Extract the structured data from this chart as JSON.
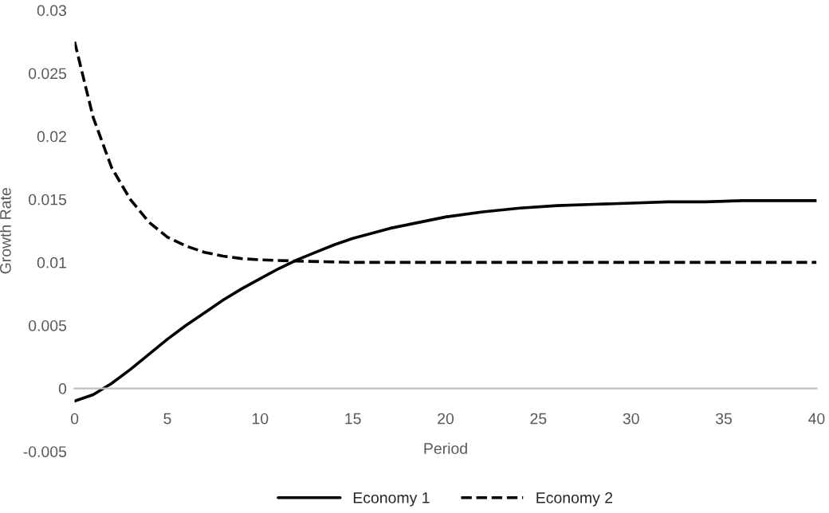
{
  "chart_data": {
    "type": "line",
    "xlabel": "Period",
    "ylabel": "Growth Rate",
    "xlim": [
      0,
      40
    ],
    "xticks": [
      0,
      5,
      10,
      15,
      20,
      25,
      30,
      35,
      40
    ],
    "ylim": [
      -0.005,
      0.03
    ],
    "yticks": [
      -0.005,
      0,
      0.005,
      0.01,
      0.015,
      0.02,
      0.025,
      0.03
    ],
    "grid": false,
    "legend": "bottom",
    "series": [
      {
        "name": "Economy 1",
        "color": "#000000",
        "line_style": "solid",
        "x": [
          0,
          1,
          2,
          3,
          4,
          5,
          6,
          7,
          8,
          9,
          10,
          11,
          12,
          13,
          14,
          15,
          16,
          17,
          18,
          19,
          20,
          22,
          24,
          26,
          28,
          30,
          32,
          34,
          36,
          38,
          40
        ],
        "values": [
          -0.001,
          -0.0005,
          0.0004,
          0.0015,
          0.0027,
          0.0039,
          0.005,
          0.006,
          0.007,
          0.0079,
          0.0087,
          0.0095,
          0.0102,
          0.0108,
          0.0114,
          0.0119,
          0.0123,
          0.0127,
          0.013,
          0.0133,
          0.0136,
          0.014,
          0.0143,
          0.0145,
          0.0146,
          0.0147,
          0.0148,
          0.0148,
          0.0149,
          0.0149,
          0.0149
        ]
      },
      {
        "name": "Economy 2",
        "color": "#000000",
        "line_style": "dashed",
        "x": [
          0,
          1,
          2,
          3,
          4,
          5,
          6,
          7,
          8,
          9,
          10,
          12,
          15,
          20,
          25,
          30,
          35,
          40
        ],
        "values": [
          0.0275,
          0.0215,
          0.0175,
          0.015,
          0.0132,
          0.012,
          0.0113,
          0.0108,
          0.0105,
          0.0103,
          0.0102,
          0.0101,
          0.01,
          0.01,
          0.01,
          0.01,
          0.01,
          0.01
        ]
      }
    ]
  }
}
